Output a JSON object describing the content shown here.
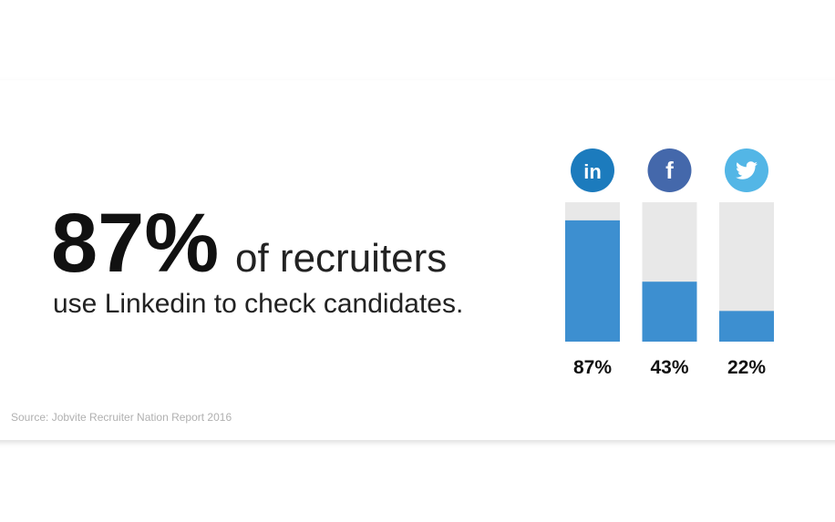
{
  "headline": {
    "stat": "87%",
    "text": "of recruiters",
    "subline": "use Linkedin to check candidates."
  },
  "source": "Source: Jobvite Recruiter Nation Report 2016",
  "chart_data": {
    "type": "bar",
    "categories": [
      "in",
      "f",
      null
    ],
    "series": [
      {
        "name": null,
        "colors": [
          "#1c7bbd",
          "#4468ab",
          "#53b6e6"
        ],
        "bar_color": "#3d8fd0",
        "values": [
          87,
          43,
          22
        ],
        "value_labels": [
          "87%",
          "43%",
          "22%"
        ]
      }
    ],
    "ylim": [
      0,
      100
    ]
  }
}
